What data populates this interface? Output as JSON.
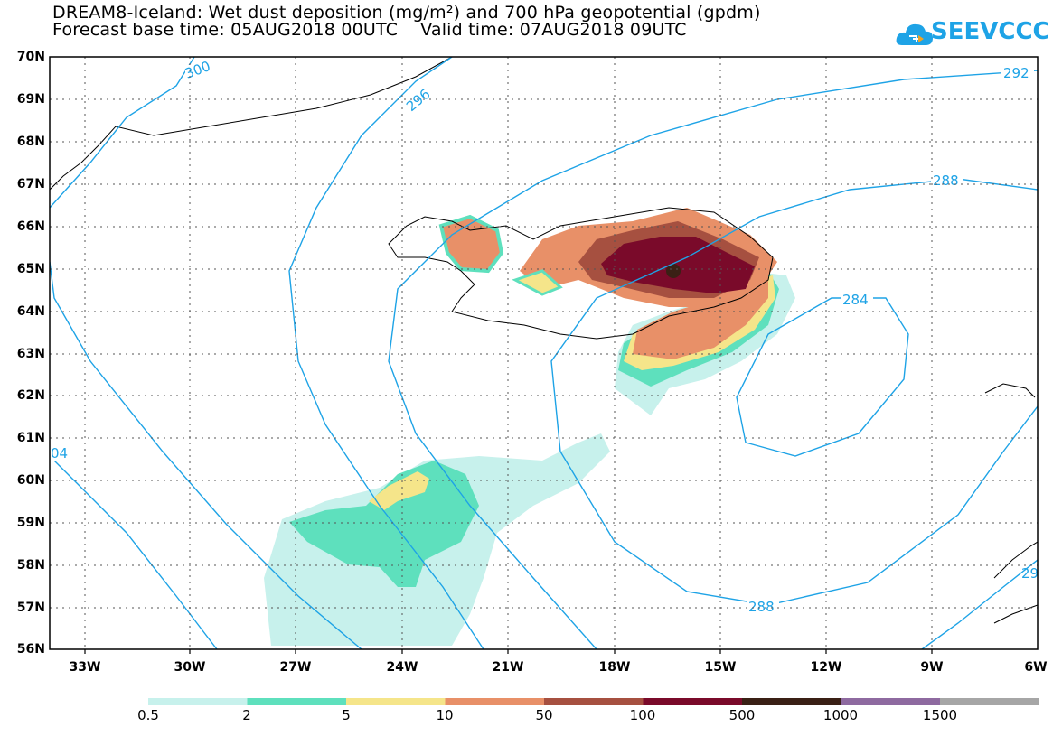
{
  "header": {
    "title_line1": "DREAM8-Iceland: Wet dust deposition (mg/m²) and 700 hPa geopotential (gpdm)",
    "title_line2": "Forecast base time: 05AUG2018 00UTC    Valid time: 07AUG2018 09UTC"
  },
  "logo": {
    "text": "SEEVCCC",
    "icon": "cloud-icon"
  },
  "axes": {
    "lat_labels": [
      "70N",
      "69N",
      "68N",
      "67N",
      "66N",
      "65N",
      "64N",
      "63N",
      "62N",
      "61N",
      "60N",
      "59N",
      "58N",
      "57N",
      "56N"
    ],
    "lon_labels": [
      "33W",
      "30W",
      "27W",
      "24W",
      "21W",
      "18W",
      "15W",
      "12W",
      "9W",
      "6W"
    ]
  },
  "contours": [
    {
      "label": "300"
    },
    {
      "label": "296"
    },
    {
      "label": "292"
    },
    {
      "label": "288"
    },
    {
      "label": "284"
    },
    {
      "label": "288"
    },
    {
      "label": "04"
    },
    {
      "label": "29"
    }
  ],
  "colorbar": {
    "labels": [
      "0.5",
      "2",
      "5",
      "10",
      "50",
      "100",
      "500",
      "1000",
      "1500"
    ],
    "colors": [
      "#c7f1ec",
      "#5ee0bd",
      "#f5e58a",
      "#e89068",
      "#a65040",
      "#7a0a2a",
      "#3a2015",
      "#8e6aa0",
      "#a6a6a6"
    ]
  },
  "contour_color": "#1ea3e6"
}
